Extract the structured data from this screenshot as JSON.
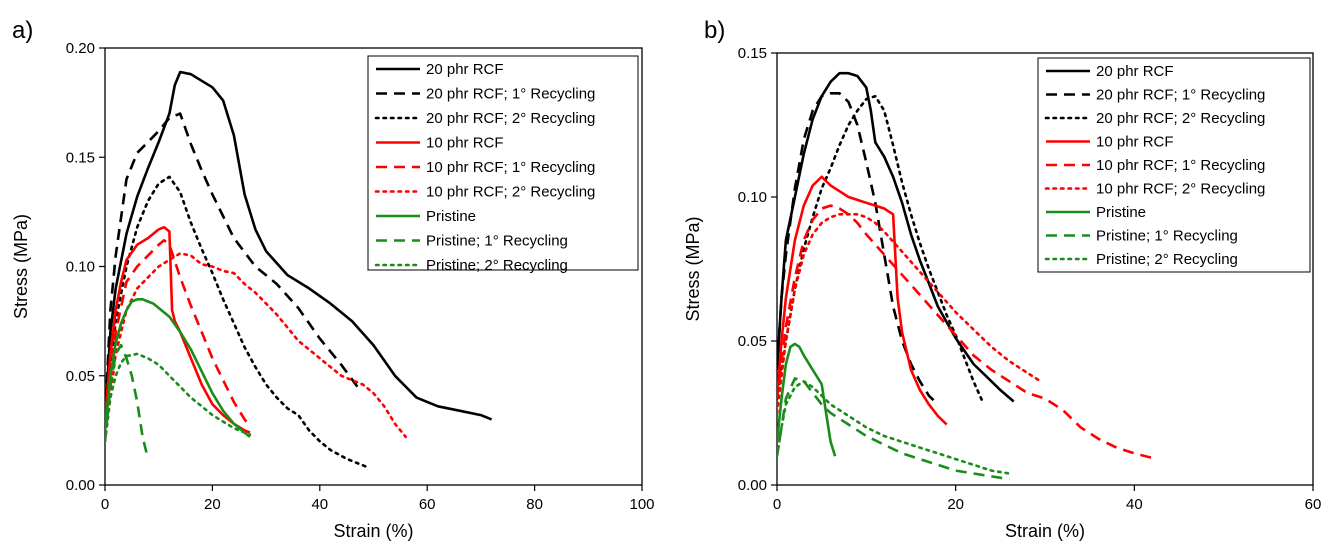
{
  "chart_data": [
    {
      "type": "line",
      "panel_label": "a)",
      "xlabel": "Strain (%)",
      "ylabel": "Stress (MPa)",
      "xlim": [
        0,
        100
      ],
      "ylim": [
        0,
        0.2
      ],
      "xticks": [
        0,
        20,
        40,
        60,
        80,
        100
      ],
      "yticks": [
        0,
        0.05,
        0.1,
        0.15,
        0.2
      ],
      "ytick_labels": [
        "0.00",
        "0.05",
        "0.10",
        "0.15",
        "0.20"
      ],
      "legend_position": "top-right",
      "series": [
        {
          "name": "20 phr RCF",
          "color": "#000000",
          "dash": "solid",
          "x": [
            0,
            1,
            2,
            4,
            6,
            8,
            10,
            12,
            13,
            14,
            16,
            18,
            20,
            22,
            24,
            26,
            28,
            30,
            34,
            38,
            42,
            46,
            50,
            54,
            58,
            62,
            66,
            70,
            72
          ],
          "y": [
            0.03,
            0.07,
            0.09,
            0.115,
            0.132,
            0.145,
            0.157,
            0.17,
            0.183,
            0.189,
            0.188,
            0.185,
            0.182,
            0.176,
            0.16,
            0.133,
            0.117,
            0.107,
            0.096,
            0.09,
            0.083,
            0.075,
            0.064,
            0.05,
            0.04,
            0.036,
            0.034,
            0.032,
            0.03
          ]
        },
        {
          "name": "20 phr RCF; 1° Recycling",
          "color": "#000000",
          "dash": "dashed",
          "x": [
            0,
            1,
            2,
            4,
            6,
            8,
            10,
            12,
            14,
            16,
            18,
            20,
            24,
            28,
            32,
            36,
            40,
            44,
            47
          ],
          "y": [
            0.03,
            0.08,
            0.105,
            0.14,
            0.152,
            0.157,
            0.162,
            0.168,
            0.17,
            0.156,
            0.144,
            0.133,
            0.113,
            0.1,
            0.092,
            0.081,
            0.067,
            0.055,
            0.045
          ]
        },
        {
          "name": "20 phr RCF; 2° Recycling",
          "color": "#000000",
          "dash": "dotted",
          "x": [
            0,
            2,
            4,
            6,
            8,
            10,
            12,
            14,
            16,
            18,
            20,
            22,
            24,
            26,
            28,
            30,
            32,
            34,
            36,
            38,
            40,
            42,
            45,
            48,
            49
          ],
          "y": [
            0.03,
            0.075,
            0.1,
            0.118,
            0.13,
            0.138,
            0.141,
            0.134,
            0.12,
            0.108,
            0.097,
            0.085,
            0.074,
            0.063,
            0.054,
            0.046,
            0.04,
            0.035,
            0.032,
            0.025,
            0.02,
            0.016,
            0.012,
            0.009,
            0.008
          ]
        },
        {
          "name": "10 phr RCF",
          "color": "#ff0000",
          "dash": "solid",
          "x": [
            0,
            1,
            2,
            3,
            4,
            6,
            8,
            10,
            11,
            12,
            12.5,
            13,
            14,
            16,
            18,
            20,
            22,
            24,
            26,
            27
          ],
          "y": [
            0.03,
            0.06,
            0.08,
            0.093,
            0.103,
            0.11,
            0.113,
            0.117,
            0.118,
            0.116,
            0.08,
            0.075,
            0.07,
            0.058,
            0.046,
            0.037,
            0.032,
            0.028,
            0.025,
            0.024
          ]
        },
        {
          "name": "10 phr RCF; 1° Recycling",
          "color": "#ff0000",
          "dash": "dashed",
          "x": [
            0,
            1,
            2,
            4,
            6,
            8,
            10,
            11,
            12,
            14,
            16,
            18,
            20,
            22,
            24,
            26,
            27
          ],
          "y": [
            0.025,
            0.05,
            0.07,
            0.093,
            0.1,
            0.105,
            0.11,
            0.112,
            0.11,
            0.095,
            0.082,
            0.07,
            0.058,
            0.048,
            0.038,
            0.03,
            0.027
          ]
        },
        {
          "name": "10 phr RCF; 2° Recycling",
          "color": "#ff0000",
          "dash": "dotted",
          "x": [
            0,
            2,
            4,
            6,
            8,
            10,
            12,
            14,
            16,
            18,
            20,
            22,
            24,
            26,
            28,
            30,
            32,
            34,
            36,
            38,
            40,
            42,
            44,
            46,
            48,
            50,
            52,
            54,
            56
          ],
          "y": [
            0.02,
            0.06,
            0.08,
            0.09,
            0.095,
            0.1,
            0.103,
            0.106,
            0.105,
            0.101,
            0.1,
            0.098,
            0.097,
            0.092,
            0.088,
            0.083,
            0.078,
            0.072,
            0.066,
            0.062,
            0.058,
            0.054,
            0.05,
            0.048,
            0.046,
            0.042,
            0.036,
            0.028,
            0.022
          ]
        },
        {
          "name": "Pristine",
          "color": "#1a8c1a",
          "dash": "solid",
          "x": [
            0,
            1,
            2,
            3,
            4,
            5,
            6,
            7,
            8,
            9,
            10,
            12,
            14,
            16,
            18,
            20,
            22,
            24,
            26,
            27
          ],
          "y": [
            0.025,
            0.05,
            0.065,
            0.074,
            0.08,
            0.084,
            0.085,
            0.085,
            0.084,
            0.083,
            0.081,
            0.077,
            0.07,
            0.062,
            0.052,
            0.042,
            0.034,
            0.028,
            0.024,
            0.022
          ]
        },
        {
          "name": "Pristine; 1° Recycling",
          "color": "#1a8c1a",
          "dash": "dashed",
          "x": [
            0,
            1,
            2,
            3,
            4,
            5,
            6,
            7,
            8
          ],
          "y": [
            0.02,
            0.045,
            0.06,
            0.064,
            0.058,
            0.05,
            0.038,
            0.022,
            0.012
          ]
        },
        {
          "name": "Pristine; 2° Recycling",
          "color": "#1a8c1a",
          "dash": "dotted",
          "x": [
            0,
            1,
            2,
            3,
            4,
            6,
            8,
            10,
            12,
            14,
            16,
            18,
            20,
            22,
            24,
            26,
            27
          ],
          "y": [
            0.02,
            0.04,
            0.05,
            0.056,
            0.059,
            0.06,
            0.058,
            0.055,
            0.05,
            0.045,
            0.04,
            0.036,
            0.032,
            0.029,
            0.026,
            0.024,
            0.023
          ]
        }
      ]
    },
    {
      "type": "line",
      "panel_label": "b)",
      "xlabel": "Strain (%)",
      "ylabel": "Stress (MPa)",
      "xlim": [
        0,
        60
      ],
      "ylim": [
        0,
        0.15
      ],
      "xticks": [
        0,
        20,
        40,
        60
      ],
      "yticks": [
        0,
        0.05,
        0.1,
        0.15
      ],
      "ytick_labels": [
        "0.00",
        "0.05",
        "0.10",
        "0.15"
      ],
      "legend_position": "top-right",
      "series": [
        {
          "name": "20 phr RCF",
          "color": "#000000",
          "dash": "solid",
          "x": [
            0,
            0.5,
            1,
            2,
            3,
            4,
            5,
            6,
            7,
            8,
            9,
            10,
            10.5,
            11,
            12,
            13,
            14,
            15,
            16,
            17,
            18,
            20,
            22,
            24,
            25,
            26.5
          ],
          "y": [
            0.04,
            0.065,
            0.085,
            0.1,
            0.115,
            0.127,
            0.135,
            0.14,
            0.143,
            0.143,
            0.142,
            0.138,
            0.13,
            0.119,
            0.114,
            0.107,
            0.098,
            0.087,
            0.078,
            0.07,
            0.062,
            0.051,
            0.042,
            0.036,
            0.033,
            0.029
          ]
        },
        {
          "name": "20 phr RCF; 1° Recycling",
          "color": "#000000",
          "dash": "dashed",
          "x": [
            0,
            0.5,
            1,
            2,
            3,
            4,
            5,
            6,
            7,
            8,
            9,
            10,
            11,
            12,
            13,
            14,
            15,
            16,
            17,
            18
          ],
          "y": [
            0.04,
            0.065,
            0.08,
            0.103,
            0.12,
            0.13,
            0.135,
            0.136,
            0.136,
            0.133,
            0.125,
            0.112,
            0.098,
            0.08,
            0.062,
            0.05,
            0.042,
            0.036,
            0.031,
            0.028
          ]
        },
        {
          "name": "20 phr RCF; 2° Recycling",
          "color": "#000000",
          "dash": "dotted",
          "x": [
            0,
            1,
            2,
            3,
            4,
            5,
            6,
            7,
            8,
            9,
            10,
            11,
            12,
            13,
            14,
            15,
            16,
            17,
            18,
            19,
            20,
            21,
            22,
            23
          ],
          "y": [
            0.03,
            0.05,
            0.068,
            0.082,
            0.093,
            0.103,
            0.11,
            0.118,
            0.125,
            0.13,
            0.134,
            0.135,
            0.13,
            0.118,
            0.105,
            0.094,
            0.084,
            0.075,
            0.067,
            0.059,
            0.052,
            0.044,
            0.036,
            0.029
          ]
        },
        {
          "name": "10 phr RCF",
          "color": "#ff0000",
          "dash": "solid",
          "x": [
            0,
            0.5,
            1,
            2,
            3,
            4,
            5,
            6,
            7,
            8,
            9,
            10,
            11,
            12,
            13,
            13.5,
            14,
            15,
            16,
            17,
            18,
            19
          ],
          "y": [
            0.03,
            0.05,
            0.065,
            0.085,
            0.097,
            0.104,
            0.107,
            0.104,
            0.102,
            0.1,
            0.099,
            0.098,
            0.097,
            0.096,
            0.094,
            0.065,
            0.053,
            0.04,
            0.033,
            0.028,
            0.024,
            0.021
          ]
        },
        {
          "name": "10 phr RCF; 1° Recycling",
          "color": "#ff0000",
          "dash": "dashed",
          "x": [
            0,
            1,
            2,
            3,
            4,
            5,
            6,
            7,
            8,
            9,
            10,
            12,
            14,
            16,
            18,
            20,
            22,
            24,
            26,
            28,
            30,
            32,
            34,
            36,
            38,
            40,
            42.5
          ],
          "y": [
            0.03,
            0.055,
            0.072,
            0.085,
            0.092,
            0.096,
            0.097,
            0.096,
            0.094,
            0.091,
            0.087,
            0.08,
            0.073,
            0.066,
            0.059,
            0.052,
            0.045,
            0.04,
            0.036,
            0.032,
            0.03,
            0.026,
            0.02,
            0.016,
            0.013,
            0.011,
            0.009
          ]
        },
        {
          "name": "10 phr RCF; 2° Recycling",
          "color": "#ff0000",
          "dash": "dotted",
          "x": [
            0,
            1,
            2,
            3,
            4,
            5,
            6,
            7,
            8,
            9,
            10,
            11,
            12,
            14,
            16,
            18,
            20,
            22,
            24,
            26,
            28,
            29.5
          ],
          "y": [
            0.025,
            0.05,
            0.068,
            0.08,
            0.087,
            0.091,
            0.093,
            0.094,
            0.094,
            0.094,
            0.093,
            0.091,
            0.088,
            0.081,
            0.074,
            0.067,
            0.06,
            0.054,
            0.048,
            0.043,
            0.039,
            0.036
          ]
        },
        {
          "name": "Pristine",
          "color": "#1a8c1a",
          "dash": "solid",
          "x": [
            0,
            0.5,
            1,
            1.5,
            2,
            2.5,
            3,
            4,
            5,
            5.5,
            6,
            6.5
          ],
          "y": [
            0.015,
            0.03,
            0.042,
            0.048,
            0.049,
            0.048,
            0.045,
            0.04,
            0.035,
            0.025,
            0.015,
            0.01
          ]
        },
        {
          "name": "Pristine; 1° Recycling",
          "color": "#1a8c1a",
          "dash": "dashed",
          "x": [
            0,
            0.5,
            1,
            2,
            3,
            4,
            5,
            6,
            8,
            10,
            12,
            14,
            16,
            18,
            20,
            22,
            24,
            26
          ],
          "y": [
            0.01,
            0.02,
            0.03,
            0.037,
            0.036,
            0.032,
            0.028,
            0.025,
            0.021,
            0.017,
            0.014,
            0.011,
            0.009,
            0.007,
            0.005,
            0.004,
            0.003,
            0.002
          ]
        },
        {
          "name": "Pristine; 2° Recycling",
          "color": "#1a8c1a",
          "dash": "dotted",
          "x": [
            0,
            0.5,
            1,
            2,
            3,
            4,
            5,
            6,
            8,
            10,
            12,
            14,
            16,
            18,
            20,
            22,
            24,
            26
          ],
          "y": [
            0.01,
            0.02,
            0.028,
            0.034,
            0.036,
            0.034,
            0.031,
            0.028,
            0.024,
            0.02,
            0.017,
            0.015,
            0.013,
            0.011,
            0.009,
            0.007,
            0.005,
            0.004
          ]
        }
      ]
    }
  ]
}
